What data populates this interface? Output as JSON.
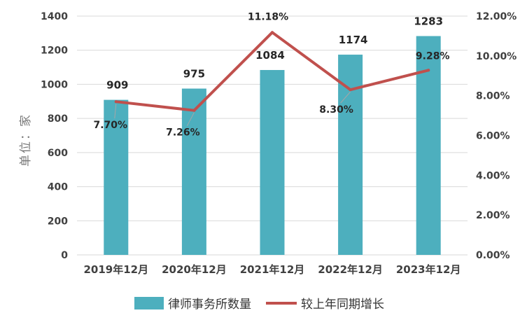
{
  "chart_data": {
    "type": "bar+line",
    "categories": [
      "2019年12月",
      "2020年12月",
      "2021年12月",
      "2022年12月",
      "2023年12月"
    ],
    "series": [
      {
        "name": "律师事务所数量",
        "type": "bar",
        "axis": "left",
        "values": [
          909,
          975,
          1084,
          1174,
          1283
        ],
        "labels": [
          "909",
          "975",
          "1084",
          "1174",
          "1283"
        ],
        "color": "#4DAFBE"
      },
      {
        "name": "较上年同期增长",
        "type": "line",
        "axis": "right",
        "values": [
          7.7,
          7.26,
          11.18,
          8.3,
          9.28
        ],
        "labels": [
          "7.70%",
          "7.26%",
          "11.18%",
          "8.30%",
          "9.28%"
        ],
        "color": "#C0504D"
      }
    ],
    "ylabel": "单位：家",
    "y_left": {
      "range": [
        0,
        1400
      ],
      "ticks": [
        "0",
        "200",
        "400",
        "600",
        "800",
        "1000",
        "1200",
        "1400"
      ]
    },
    "y_right": {
      "range": [
        0,
        12
      ],
      "ticks": [
        "0.00%",
        "2.00%",
        "4.00%",
        "6.00%",
        "8.00%",
        "10.00%",
        "12.00%"
      ]
    },
    "grid": true,
    "legend": "bottom"
  }
}
